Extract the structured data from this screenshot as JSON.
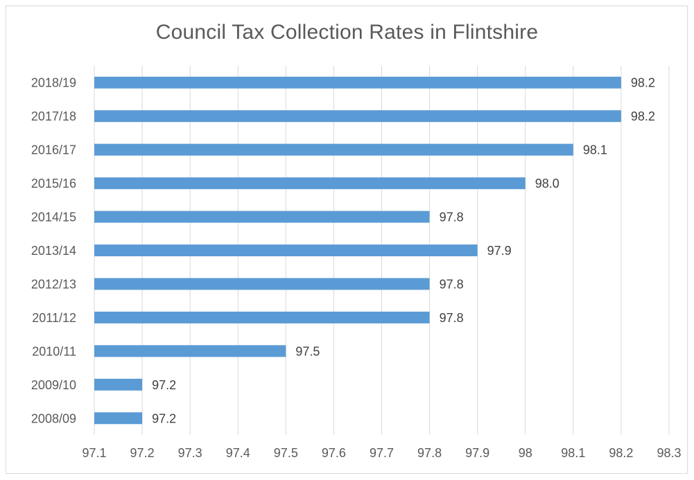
{
  "chart_data": {
    "type": "bar",
    "orientation": "horizontal",
    "title": "Council Tax Collection Rates in Flintshire",
    "xlabel": "",
    "ylabel": "",
    "categories": [
      "2008/09",
      "2009/10",
      "2010/11",
      "2011/12",
      "2012/13",
      "2013/14",
      "2014/15",
      "2015/16",
      "2016/17",
      "2017/18",
      "2018/19"
    ],
    "values": [
      97.2,
      97.2,
      97.5,
      97.8,
      97.8,
      97.9,
      97.8,
      98.0,
      98.1,
      98.2,
      98.2
    ],
    "data_labels": [
      "97.2",
      "97.2",
      "97.5",
      "97.8",
      "97.8",
      "97.9",
      "97.8",
      "98.0",
      "98.1",
      "98.2",
      "98.2"
    ],
    "xlim": [
      97.1,
      98.3
    ],
    "x_ticks": [
      97.1,
      97.2,
      97.3,
      97.4,
      97.5,
      97.6,
      97.7,
      97.8,
      97.9,
      98,
      98.1,
      98.2,
      98.3
    ],
    "x_tick_labels": [
      "97.1",
      "97.2",
      "97.3",
      "97.4",
      "97.5",
      "97.6",
      "97.7",
      "97.8",
      "97.9",
      "98",
      "98.1",
      "98.2",
      "98.3"
    ],
    "grid": "vertical",
    "legend": "none",
    "bar_color": "#5b9bd5",
    "grid_color": "#d9d9d9",
    "text_color": "#595959"
  }
}
